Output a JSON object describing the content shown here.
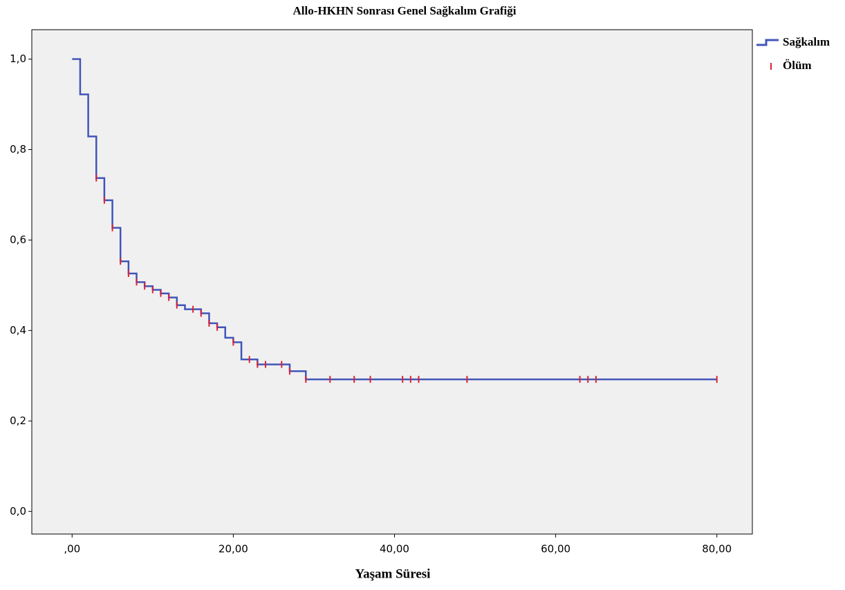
{
  "chart_data": {
    "type": "step",
    "title": "Allo-HKHN Sonrası Genel Sağkalım Grafiği",
    "x_label": "Yaşam Süresi",
    "xlim": [
      -5,
      84.4
    ],
    "ylim": [
      -0.05,
      1.065
    ],
    "xticks": [
      {
        "value": 0,
        "label": ",00"
      },
      {
        "value": 20,
        "label": "20,00"
      },
      {
        "value": 40,
        "label": "40,00"
      },
      {
        "value": 60,
        "label": "60,00"
      },
      {
        "value": 80,
        "label": "80,00"
      }
    ],
    "yticks": [
      {
        "value": 0,
        "label": "0,0"
      },
      {
        "value": 0.2,
        "label": "0,2"
      },
      {
        "value": 0.4,
        "label": "0,4"
      },
      {
        "value": 0.6,
        "label": "0,6"
      },
      {
        "value": 0.8,
        "label": "0,8"
      },
      {
        "value": 1.0,
        "label": "1,0"
      }
    ],
    "background": "#f0f0f0",
    "series": [
      {
        "name": "Sağkalım",
        "color": "#4055b8",
        "marker": "step",
        "x": [
          0,
          1,
          2,
          3,
          4,
          5,
          6,
          7,
          8,
          9,
          10,
          11,
          12,
          13,
          14,
          16,
          17,
          18,
          19,
          20,
          21,
          23,
          27,
          29,
          80
        ],
        "values": [
          1.0,
          0.922,
          0.829,
          0.737,
          0.688,
          0.627,
          0.553,
          0.526,
          0.507,
          0.498,
          0.49,
          0.482,
          0.473,
          0.456,
          0.447,
          0.438,
          0.416,
          0.407,
          0.384,
          0.374,
          0.336,
          0.325,
          0.31,
          0.292,
          0.292
        ]
      },
      {
        "name": "Ölüm",
        "color": "#e02030",
        "marker": "censor",
        "x": [
          3,
          4,
          5,
          6,
          7,
          8,
          9,
          10,
          11,
          12,
          13,
          15,
          16,
          17,
          18,
          20,
          22,
          23,
          24,
          26,
          27,
          29,
          32,
          35,
          37,
          41,
          42,
          43,
          49,
          63,
          64,
          65,
          80
        ],
        "values": [
          0.737,
          0.688,
          0.627,
          0.553,
          0.526,
          0.507,
          0.498,
          0.49,
          0.482,
          0.473,
          0.456,
          0.447,
          0.438,
          0.416,
          0.407,
          0.374,
          0.336,
          0.325,
          0.325,
          0.325,
          0.31,
          0.292,
          0.292,
          0.292,
          0.292,
          0.292,
          0.292,
          0.292,
          0.292,
          0.292,
          0.292,
          0.292,
          0.292
        ]
      }
    ]
  }
}
